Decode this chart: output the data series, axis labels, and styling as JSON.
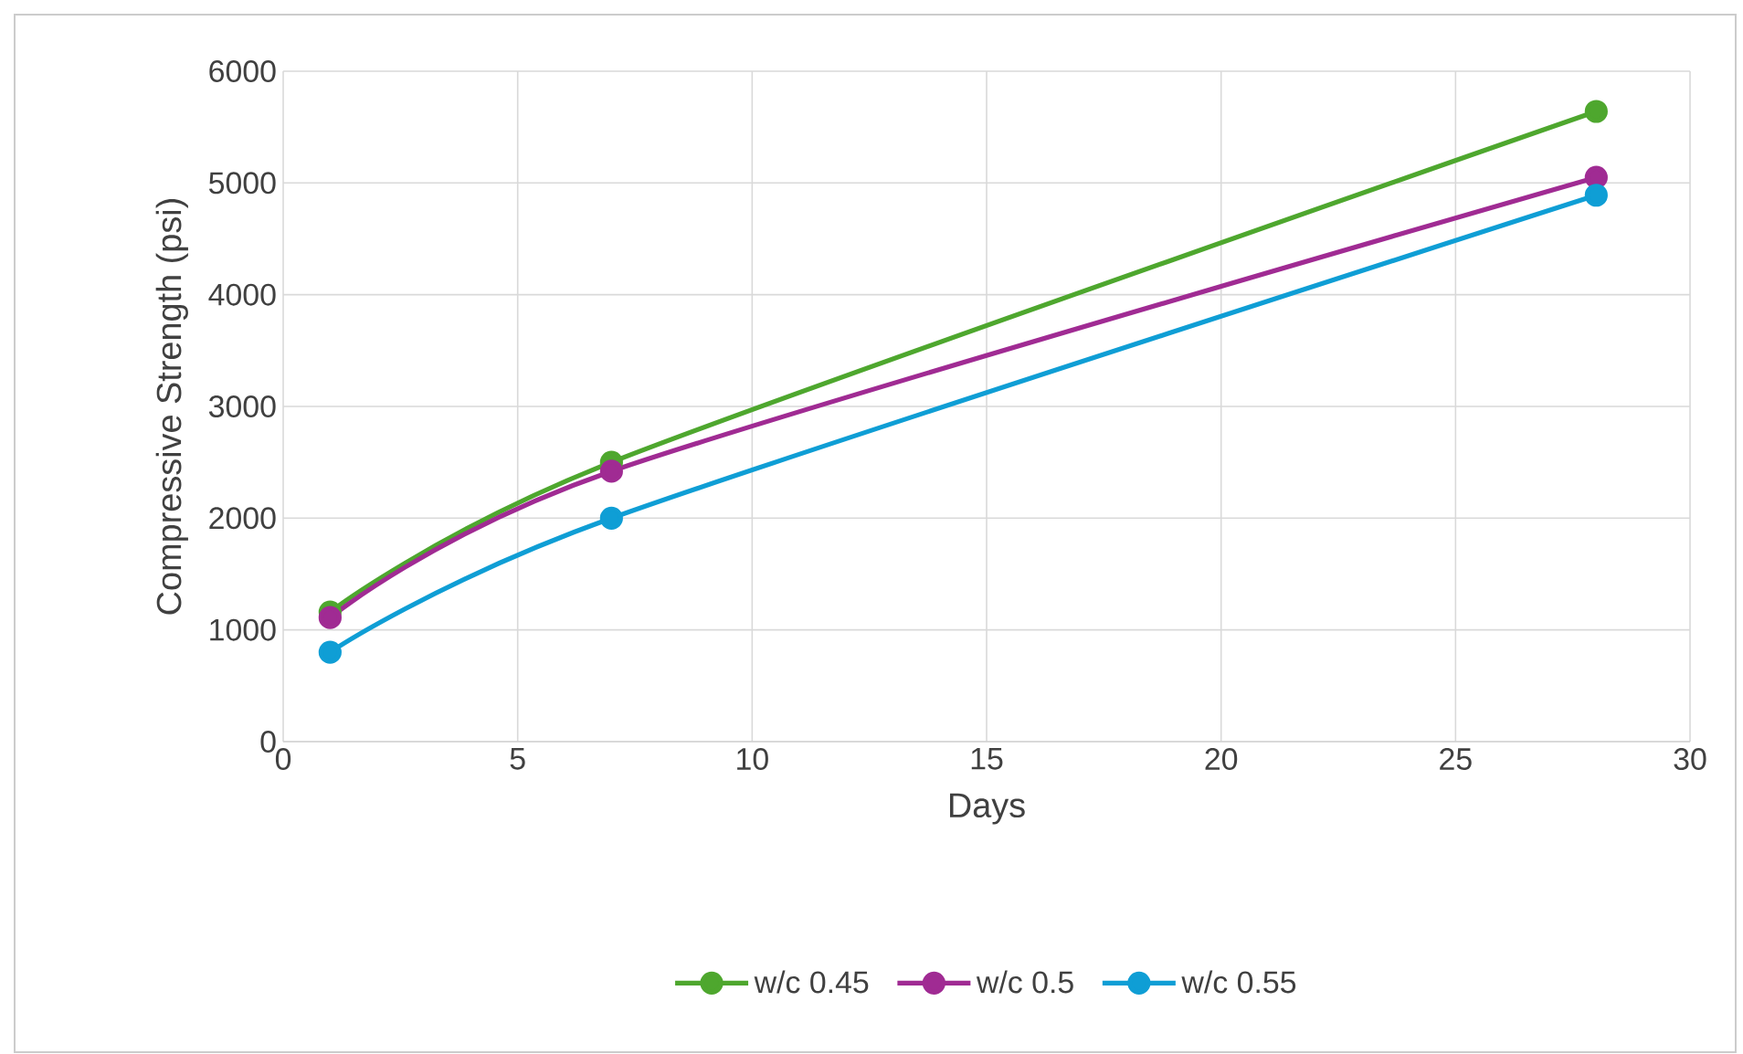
{
  "chart_data": {
    "type": "line",
    "xlabel": "Days",
    "ylabel": "Compressive Strength (psi)",
    "x": [
      1,
      7,
      28
    ],
    "series": [
      {
        "name": "w/c 0.45",
        "color": "#4ea72e",
        "values": [
          1160,
          2500,
          5640
        ]
      },
      {
        "name": "w/c 0.5",
        "color": "#a02b93",
        "values": [
          1110,
          2420,
          5050
        ]
      },
      {
        "name": "w/c 0.55",
        "color": "#0f9ed5",
        "values": [
          800,
          2000,
          4890
        ]
      }
    ],
    "xlim": [
      0,
      30
    ],
    "ylim": [
      0,
      6000
    ],
    "xticks": [
      0,
      5,
      10,
      15,
      20,
      25,
      30
    ],
    "yticks": [
      0,
      1000,
      2000,
      3000,
      4000,
      5000,
      6000
    ],
    "grid": true,
    "legend": "bottom",
    "marker": "circle",
    "line_style": "solid"
  }
}
